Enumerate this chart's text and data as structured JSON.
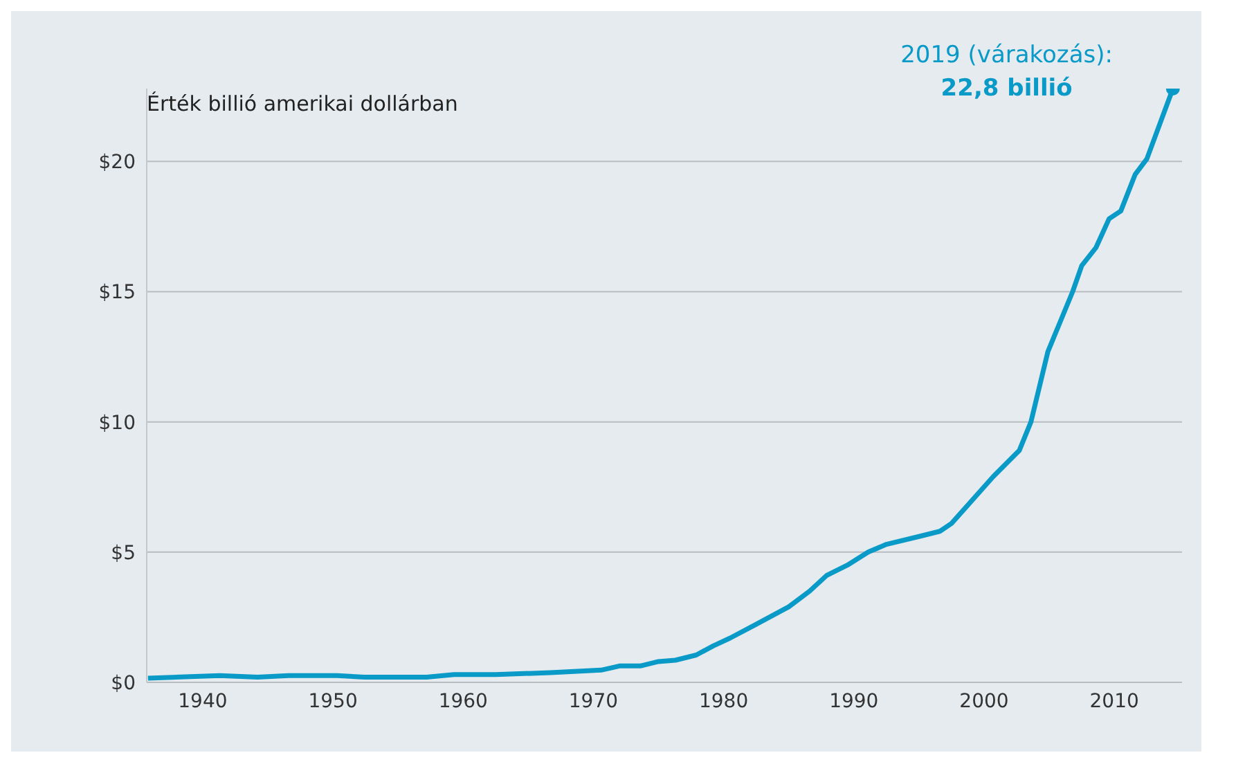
{
  "chart_data": {
    "type": "line",
    "ylabel": "Érték billió amerikai dollárban",
    "x": [
      1935.8,
      1941.3,
      1944.2,
      1946.6,
      1950.3,
      1952.4,
      1957.2,
      1959.3,
      1962.5,
      1966.7,
      1970.6,
      1972,
      1973.6,
      1975,
      1976.3,
      1977.9,
      1979.2,
      1980.5,
      1982.4,
      1985,
      1986.6,
      1987.9,
      1989.5,
      1991.1,
      1992.5,
      1995,
      1996.6,
      1997.5,
      2000.7,
      2002.7,
      2003.6,
      2004.9,
      2006.8,
      2007.5,
      2008.6,
      2009.6,
      2010.5,
      2011.6,
      2012.5,
      2014.5
    ],
    "series": [
      {
        "color": "#0a9ac8",
        "values": [
          0.16,
          0.26,
          0.2,
          0.26,
          0.26,
          0.2,
          0.2,
          0.3,
          0.3,
          0.37,
          0.47,
          0.63,
          0.63,
          0.8,
          0.85,
          1.05,
          1.4,
          1.7,
          2.2,
          2.9,
          3.5,
          4.1,
          4.5,
          5.0,
          5.3,
          5.6,
          5.8,
          6.1,
          7.9,
          8.9,
          10.0,
          12.7,
          15.0,
          16.0,
          16.7,
          17.8,
          18.1,
          19.5,
          20.1,
          22.8
        ]
      }
    ],
    "xlim": [
      1935.7,
      2015.2
    ],
    "xticks": [
      1940,
      1950,
      1960,
      1970,
      1980,
      1990,
      2000,
      2010
    ],
    "yticks": [
      {
        "value": 0,
        "label": "$0"
      },
      {
        "value": 5,
        "label": "$5"
      },
      {
        "value": 10,
        "label": "$10"
      },
      {
        "value": 15,
        "label": "$15"
      },
      {
        "value": 20,
        "label": "$20"
      }
    ],
    "ylim": [
      0,
      22.8
    ],
    "grid": "y",
    "marker": "none",
    "line_style": "solid",
    "legend": false,
    "annotations": [
      "2019 (várakozás):",
      "22,8 billió"
    ]
  }
}
